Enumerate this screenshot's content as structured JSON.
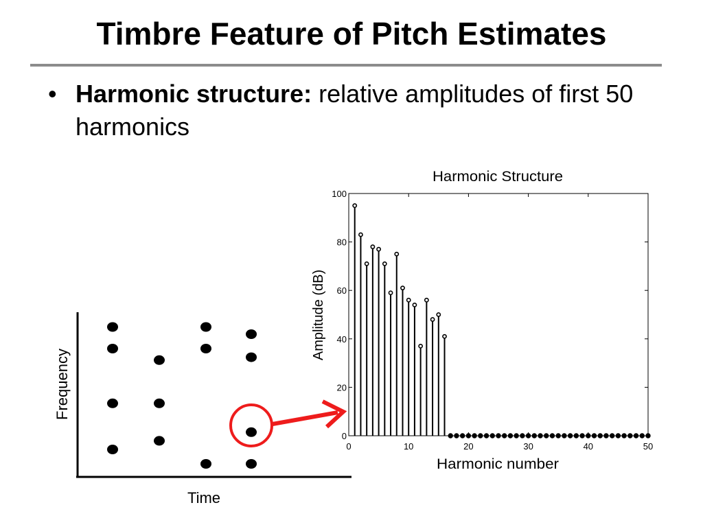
{
  "slide": {
    "title": "Timbre Feature of Pitch Estimates",
    "bullet_bold": "Harmonic structure:",
    "bullet_text": " relative amplitudes of first 50 harmonics"
  },
  "diagram": {
    "xlabel": "Time",
    "ylabel": "Frequency",
    "dot_columns": [
      {
        "time": 1,
        "frequencies": [
          95,
          80,
          42,
          10
        ]
      },
      {
        "time": 2,
        "frequencies": [
          72,
          42,
          16
        ]
      },
      {
        "time": 3,
        "frequencies": [
          95,
          80,
          0
        ]
      },
      {
        "time": 4,
        "frequencies": [
          90,
          74,
          22,
          0
        ]
      }
    ],
    "highlighted": {
      "column": 4,
      "frequency": 22
    },
    "arrow_color": "#ee1c1c"
  },
  "chart_data": {
    "type": "stem",
    "title": "Harmonic Structure",
    "xlabel": "Harmonic number",
    "ylabel": "Amplitude (dB)",
    "xlim": [
      0,
      50
    ],
    "ylim": [
      0,
      100
    ],
    "xticks": [
      0,
      10,
      20,
      30,
      40,
      50
    ],
    "yticks": [
      0,
      20,
      40,
      60,
      80,
      100
    ],
    "grid": false,
    "x": [
      1,
      2,
      3,
      4,
      5,
      6,
      7,
      8,
      9,
      10,
      11,
      12,
      13,
      14,
      15,
      16,
      17,
      18,
      19,
      20,
      21,
      22,
      23,
      24,
      25,
      26,
      27,
      28,
      29,
      30,
      31,
      32,
      33,
      34,
      35,
      36,
      37,
      38,
      39,
      40,
      41,
      42,
      43,
      44,
      45,
      46,
      47,
      48,
      49,
      50
    ],
    "values": [
      95,
      83,
      71,
      78,
      77,
      71,
      59,
      75,
      61,
      56,
      54,
      37,
      56,
      48,
      50,
      41,
      0,
      0,
      0,
      0,
      0,
      0,
      0,
      0,
      0,
      0,
      0,
      0,
      0,
      0,
      0,
      0,
      0,
      0,
      0,
      0,
      0,
      0,
      0,
      0,
      0,
      0,
      0,
      0,
      0,
      0,
      0,
      0,
      0,
      0
    ]
  }
}
